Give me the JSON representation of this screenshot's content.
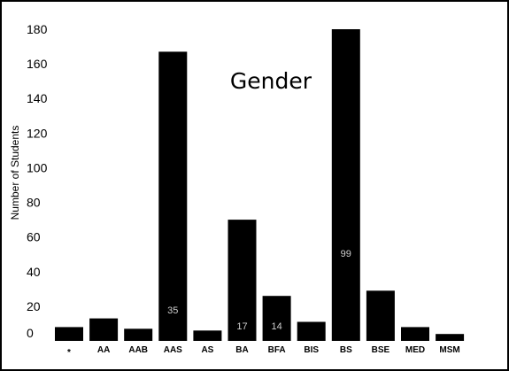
{
  "chart_data": {
    "type": "bar",
    "title": "Gender",
    "xlabel": "",
    "ylabel": "Number of Students",
    "ylim": [
      0,
      180
    ],
    "yticks": [
      0,
      20,
      40,
      60,
      80,
      100,
      120,
      140,
      160,
      180
    ],
    "categories": [
      "*",
      "AA",
      "AAB",
      "AAS",
      "AS",
      "BA",
      "BFA",
      "BIS",
      "BS",
      "BSE",
      "MED",
      "MSM"
    ],
    "values": [
      8,
      13,
      7,
      167,
      6,
      70,
      26,
      11,
      180,
      29,
      8,
      4
    ],
    "data_labels": [
      "",
      "",
      "",
      "35",
      "",
      "17",
      "14",
      "",
      "99",
      "",
      "",
      ""
    ],
    "bar_color": "#000000",
    "label_color": "#cfcfcf",
    "grid": false,
    "legend": "none"
  }
}
